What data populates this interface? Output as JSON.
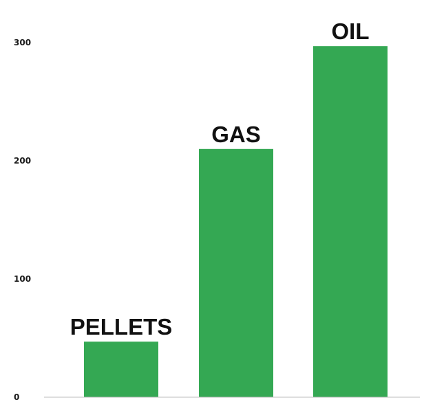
{
  "chart_data": {
    "type": "bar",
    "title": "",
    "xlabel": "",
    "ylabel": "",
    "categories": [
      "PELLETS",
      "GAS",
      "OIL"
    ],
    "values": [
      47,
      210,
      297
    ],
    "ylim": [
      0,
      300
    ],
    "yticks": [
      "0",
      "100",
      "200",
      "300"
    ],
    "bar_color": "#34a853",
    "grid": false,
    "legend": "none"
  }
}
